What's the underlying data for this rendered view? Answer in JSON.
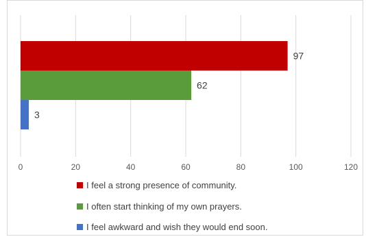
{
  "chart_data": {
    "type": "bar",
    "orientation": "horizontal",
    "title": "",
    "xlabel": "",
    "ylabel": "",
    "xlim": [
      0,
      120
    ],
    "x_ticks": [
      0,
      20,
      40,
      60,
      80,
      100,
      120
    ],
    "grid": true,
    "legend_position": "bottom",
    "series": [
      {
        "name": "I feel a strong presence of community.",
        "value": 97,
        "color": "#c00000"
      },
      {
        "name": "I often start thinking of my own prayers.",
        "value": 62,
        "color": "#5a9b3c"
      },
      {
        "name": "I feel awkward and wish they would end soon.",
        "value": 3,
        "color": "#4472c4"
      }
    ]
  }
}
